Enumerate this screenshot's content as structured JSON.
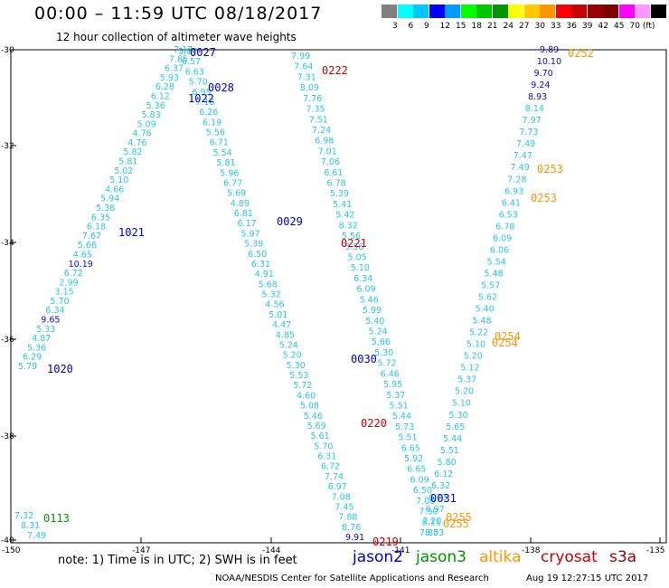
{
  "header": {
    "title": "00:00 – 11:59 UTC 08/18/2017",
    "subtitle": "12 hour collection of altimeter wave heights"
  },
  "colorbar": {
    "colors": [
      "#808080",
      "#00ffff",
      "#00c8ff",
      "#0000ff",
      "#009bff",
      "#00ff00",
      "#00c800",
      "#009600",
      "#ffff00",
      "#ffc800",
      "#ff9600",
      "#ff0000",
      "#c80000",
      "#960000",
      "#800000",
      "#ff00ff",
      "#ff96ff",
      "#000000"
    ],
    "labels": [
      "3",
      "6",
      "9",
      "12",
      "15",
      "18",
      "21",
      "24",
      "27",
      "30",
      "33",
      "36",
      "39",
      "42",
      "45",
      "70 (ft)"
    ]
  },
  "axes": {
    "y_ticks": [
      "-30",
      "-32",
      "-34",
      "-36",
      "-38",
      "-40"
    ],
    "x_ticks": [
      "-150",
      "-147",
      "-144",
      "-141",
      "-138",
      "-135"
    ]
  },
  "tracks": {
    "t1020": [
      "5.79",
      "6.29",
      "5.36",
      "4.87",
      "5.33",
      "9.65",
      "6.34",
      "5.70",
      "3.15",
      "2.99",
      "6.72",
      "10.19",
      "4.65",
      "5.66",
      "7.67",
      "6.18",
      "6.35",
      "5.38",
      "5.94",
      "4.66",
      "5.10",
      "5.02",
      "5.81",
      "5.82",
      "4.76",
      "4.76",
      "5.09",
      "5.83",
      "5.36",
      "6.12",
      "6.28",
      "5.93",
      "6.37",
      "7.85",
      "7.17"
    ],
    "t0028": [
      "5.87",
      "6.57",
      "6.63",
      "5.70",
      "6.95",
      "7.16",
      "6.26",
      "6.19",
      "5.56",
      "6.71",
      "5.54",
      "5.81",
      "5.96",
      "6.77",
      "5.69",
      "4.89",
      "6.81",
      "6.17",
      "5.97",
      "5.39",
      "6.50",
      "6.31",
      "4.91",
      "5.68",
      "5.32",
      "4.56",
      "5.01",
      "4.47",
      "4.85",
      "5.24",
      "5.20",
      "5.30",
      "5.53",
      "5.72",
      "4.60",
      "5.08",
      "5.46",
      "5.69",
      "5.61",
      "5.70",
      "6.31",
      "6.72",
      "7.74",
      "6.97",
      "7.08",
      "7.45",
      "7.88",
      "8.76",
      "9.91"
    ],
    "t0222": [
      "7.99",
      "7.64",
      "7.31",
      "8.09",
      "7.76",
      "7.35",
      "7.51",
      "7.24",
      "6.98",
      "7.01",
      "7.06",
      "6.61",
      "6.78",
      "5.39",
      "5.41",
      "5.42",
      "8.32",
      "5.56",
      "5.56",
      "5.05",
      "5.10",
      "6.34",
      "6.09",
      "5.46",
      "5.99",
      "5.40",
      "5.24",
      "5.66",
      "5.30",
      "5.72",
      "6.46",
      "5.95",
      "5.37",
      "5.51",
      "5.44",
      "5.73",
      "5.51",
      "6.65",
      "5.92",
      "6.65",
      "6.09",
      "6.50",
      "7.00",
      "7.50",
      "8.11",
      "8.53"
    ],
    "t0253": [
      "9.89",
      "10.10",
      "9.70",
      "9.24",
      "8.93",
      "8.14",
      "7.97",
      "7.73",
      "7.49",
      "7.47",
      "7.49",
      "7.28",
      "6.93",
      "6.41",
      "6.53",
      "6.78",
      "6.09",
      "6.06",
      "5.54",
      "5.48",
      "5.57",
      "5.62",
      "5.40",
      "5.48",
      "5.22",
      "5.10",
      "5.20",
      "5.12",
      "5.37",
      "5.20",
      "5.10",
      "5.30",
      "5.65",
      "5.44",
      "5.51",
      "5.80",
      "6.12",
      "6.32",
      "6.73",
      "6.97",
      "7.20",
      "7.80"
    ],
    "t0113": [
      "7.32",
      "8.31",
      "7.49"
    ]
  },
  "time_labels": {
    "t0027": "0027",
    "t0028": "0028",
    "t1022": "1022",
    "t1021": "1021",
    "t1020": "1020",
    "t0029": "0029",
    "t0030": "0030",
    "t0031": "0031",
    "t0113": "0113",
    "t0222": "0222",
    "t0221": "0221",
    "t0220": "0220",
    "t0219": "0219",
    "t0252": "0252",
    "t0253a": "0253",
    "t0253b": "0253",
    "t0254a": "0254",
    "t0254b": "0254",
    "t0255a": "0255",
    "t0255b": "0255"
  },
  "colors": {
    "jason2": "#0000cc",
    "jason3": "#009600",
    "altika": "#ff9600",
    "cryosat": "#cc0000",
    "s3a": "#990000",
    "wave_light": "#29c6e6",
    "wave_dark": "#0a0acc"
  },
  "footer": {
    "note": "note: 1) Time is in UTC; 2) SWH is in feet",
    "legend": {
      "jason2": "jason2",
      "jason3": "jason3",
      "altika": "altika",
      "cryosat": "cryosat",
      "s3a": "s3a"
    },
    "credit": "NOAA/NESDIS Center for Satellite Applications and Research",
    "stamp": "Aug 19 12:27:15 UTC 2017"
  }
}
